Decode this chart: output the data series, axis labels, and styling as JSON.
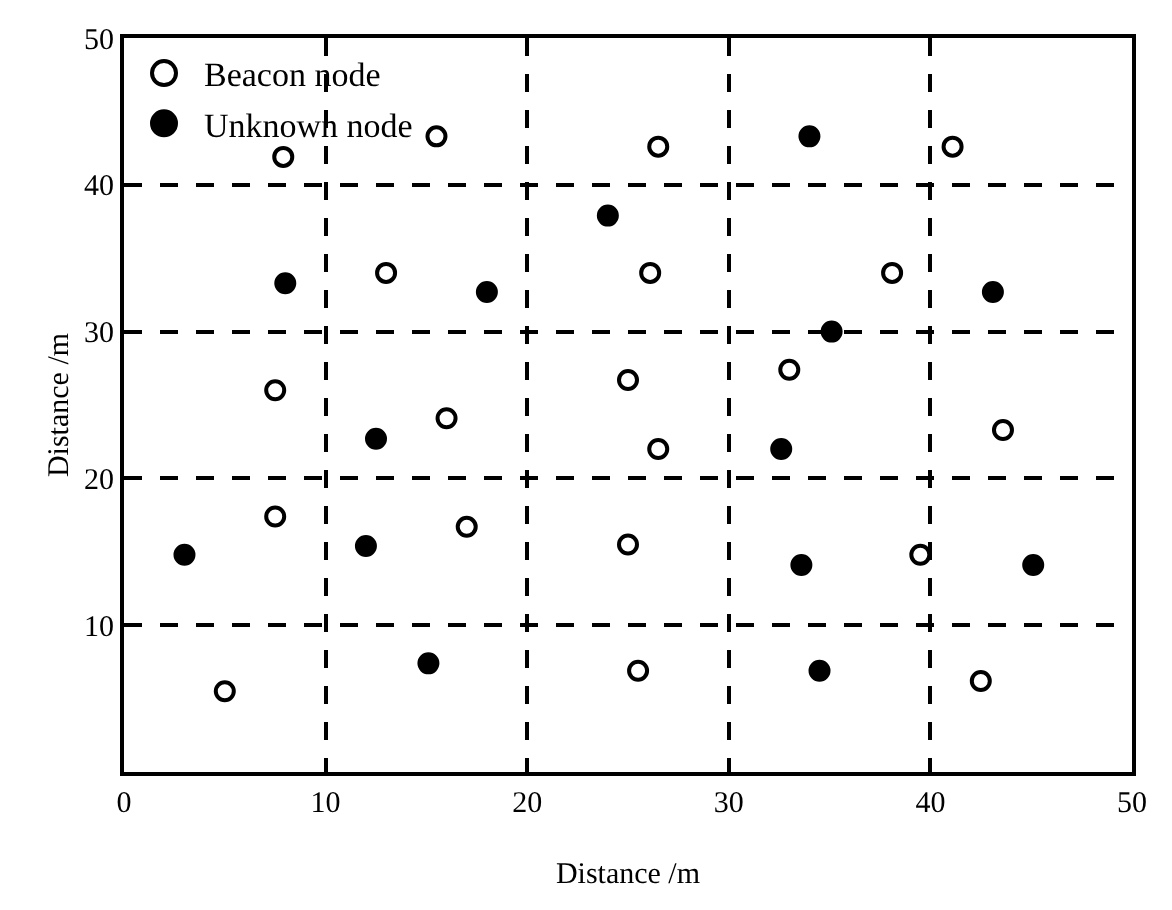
{
  "chart_data": {
    "type": "scatter",
    "xlabel": "Distance /m",
    "ylabel": "Distance /m",
    "xlim": [
      0,
      50
    ],
    "ylim": [
      0,
      50
    ],
    "xticks": [
      0,
      10,
      20,
      30,
      40,
      50
    ],
    "yticks": [
      10,
      20,
      30,
      40,
      50
    ],
    "grid": true,
    "line_style": "dashed",
    "legend": "top",
    "marker": "circle",
    "series": [
      {
        "name": "Beacon node",
        "color": "#ffffff",
        "x": [
          7.9,
          15.5,
          13.0,
          7.5,
          16.0,
          7.5,
          17.0,
          5.0,
          26.5,
          41.1,
          26.1,
          38.1,
          25.0,
          33.0,
          26.5,
          43.6,
          25.0,
          39.5,
          25.5,
          42.5
        ],
        "values": [
          41.9,
          43.3,
          34.0,
          26.0,
          24.1,
          17.4,
          16.7,
          5.5,
          42.6,
          42.6,
          34.0,
          34.0,
          26.7,
          27.4,
          22.0,
          23.3,
          15.5,
          14.8,
          6.9,
          6.2
        ]
      },
      {
        "name": "Unknown node",
        "color": "#000000",
        "x": [
          24.0,
          8.0,
          18.0,
          12.5,
          3.0,
          12.0,
          15.1,
          34.0,
          43.1,
          35.1,
          32.6,
          33.6,
          45.1,
          34.5
        ],
        "values": [
          37.9,
          33.3,
          32.7,
          22.7,
          14.8,
          15.4,
          7.4,
          43.3,
          32.7,
          30.0,
          22.0,
          14.1,
          14.1,
          6.9
        ]
      }
    ]
  }
}
